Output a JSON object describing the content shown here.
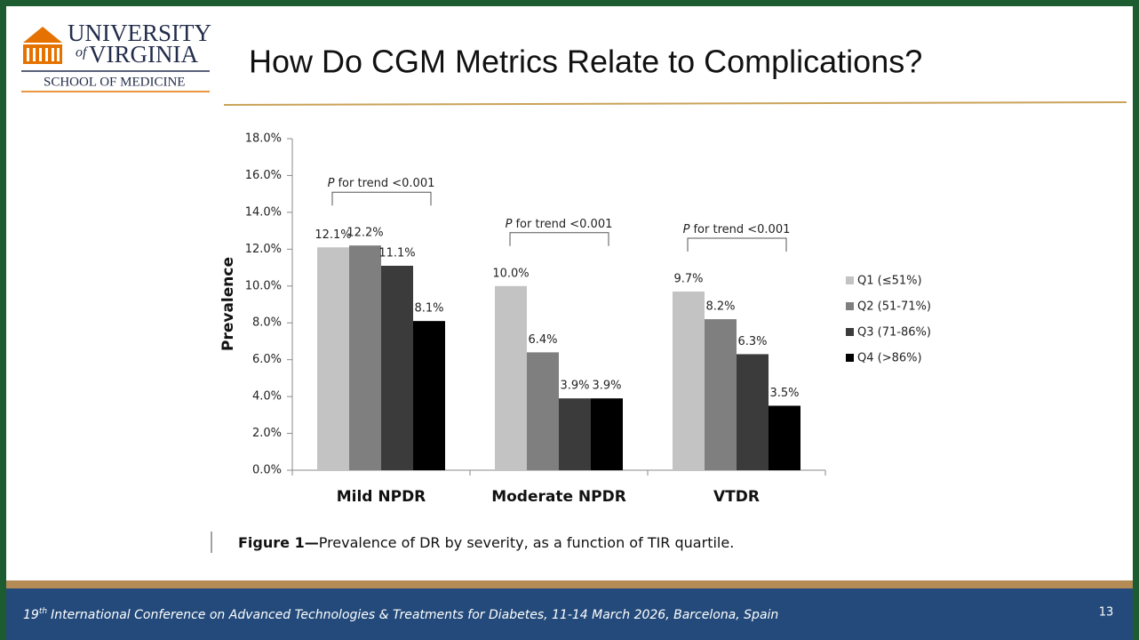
{
  "logo": {
    "line1": "UNIVERSITY",
    "of": "of",
    "line2": "VIRGINIA",
    "line3": "SCHOOL OF MEDICINE"
  },
  "slide_title": "How Do CGM Metrics Relate to Complications?",
  "chart_data": {
    "type": "bar",
    "y_label": "Prevalence",
    "categories": [
      "Mild NPDR",
      "Moderate NPDR",
      "VTDR"
    ],
    "series": [
      {
        "name": "Q1 (≤51%)",
        "color": "#c3c3c3",
        "values": [
          12.1,
          10.0,
          9.7
        ],
        "value_labels": [
          "12.1%",
          "10.0%",
          "9.7%"
        ]
      },
      {
        "name": "Q2 (51-71%)",
        "color": "#7f7f7f",
        "values": [
          12.2,
          6.4,
          8.2
        ],
        "value_labels": [
          "12.2%",
          "6.4%",
          "8.2%"
        ]
      },
      {
        "name": "Q3 (71-86%)",
        "color": "#3b3b3b",
        "values": [
          11.1,
          3.9,
          6.3
        ],
        "value_labels": [
          "11.1%",
          "3.9%",
          "6.3%"
        ]
      },
      {
        "name": "Q4 (>86%)",
        "color": "#000000",
        "values": [
          8.1,
          3.9,
          3.5
        ],
        "value_labels": [
          "8.1%",
          "3.9%",
          "3.5%"
        ]
      }
    ],
    "ylim": [
      0,
      18
    ],
    "yticks": [
      {
        "value": 0,
        "label": "0.0%"
      },
      {
        "value": 2,
        "label": "2.0%"
      },
      {
        "value": 4,
        "label": "4.0%"
      },
      {
        "value": 6,
        "label": "6.0%"
      },
      {
        "value": 8,
        "label": "8.0%"
      },
      {
        "value": 10,
        "label": "10.0%"
      },
      {
        "value": 12,
        "label": "12.0%"
      },
      {
        "value": 14,
        "label": "14.0%"
      },
      {
        "value": 16,
        "label": "16.0%"
      },
      {
        "value": 18,
        "label": "18.0%"
      }
    ],
    "annotations": [
      {
        "italic": "P",
        "text": "for trend <0.001"
      },
      {
        "italic": "P",
        "text": "for trend <0.001"
      },
      {
        "italic": "P",
        "text": "for trend <0.001"
      }
    ],
    "legend": "right",
    "grid": false
  },
  "caption": {
    "label": "Figure 1—",
    "text": "Prevalence of DR by severity, as a function of TIR quartile."
  },
  "footer": {
    "ordinal": "19",
    "sup": "th",
    "text": "International Conference on Advanced Technologies & Treatments for Diabetes, 11-14 March 2026, Barcelona, Spain"
  },
  "page_number": 13
}
